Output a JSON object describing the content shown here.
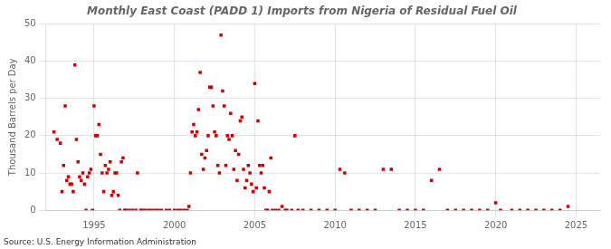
{
  "chart_data": {
    "type": "scatter",
    "title": "Monthly East Coast (PADD 1) Imports from Nigeria of Residual Fuel Oil",
    "ylabel": "Thousand Barrels per Day",
    "annotations": [
      "Source: U.S. Energy Information Administration"
    ],
    "xlim": [
      1992.0,
      2026.5
    ],
    "ylim": [
      0,
      50
    ],
    "xticks": [
      1995,
      2000,
      2005,
      2010,
      2015,
      2020,
      2025
    ],
    "yticks": [
      0,
      10,
      20,
      30,
      40,
      50
    ],
    "color": "#cc0000",
    "marker": "square",
    "grid": true,
    "x": [
      1992.5,
      1992.7,
      1992.9,
      1993.0,
      1993.1,
      1993.2,
      1993.3,
      1993.4,
      1993.5,
      1993.6,
      1993.7,
      1993.8,
      1993.9,
      1994.0,
      1994.1,
      1994.2,
      1994.3,
      1994.4,
      1994.5,
      1994.6,
      1994.7,
      1994.8,
      1994.9,
      1995.0,
      1995.1,
      1995.2,
      1995.3,
      1995.4,
      1995.5,
      1995.6,
      1995.7,
      1995.8,
      1995.9,
      1996.0,
      1996.1,
      1996.2,
      1996.3,
      1996.4,
      1996.5,
      1996.6,
      1996.7,
      1996.8,
      1996.9,
      1997.0,
      1997.2,
      1997.4,
      1997.6,
      1997.7,
      1997.9,
      1998.0,
      1998.2,
      1998.4,
      1998.6,
      1998.8,
      1999.0,
      1999.2,
      1999.5,
      1999.7,
      2000.0,
      2000.2,
      2000.4,
      2000.6,
      2000.8,
      2000.9,
      2001.0,
      2001.1,
      2001.2,
      2001.3,
      2001.4,
      2001.5,
      2001.6,
      2001.7,
      2001.8,
      2001.9,
      2002.0,
      2002.1,
      2002.2,
      2002.3,
      2002.4,
      2002.5,
      2002.6,
      2002.7,
      2002.8,
      2002.9,
      2003.0,
      2003.1,
      2003.2,
      2003.3,
      2003.4,
      2003.5,
      2003.6,
      2003.7,
      2003.8,
      2003.9,
      2004.0,
      2004.1,
      2004.2,
      2004.3,
      2004.4,
      2004.5,
      2004.6,
      2004.7,
      2004.8,
      2004.9,
      2005.0,
      2005.1,
      2005.2,
      2005.3,
      2005.4,
      2005.5,
      2005.6,
      2005.7,
      2005.8,
      2005.9,
      2006.0,
      2006.1,
      2006.3,
      2006.5,
      2006.7,
      2006.9,
      2007.0,
      2007.3,
      2007.5,
      2007.7,
      2008.0,
      2008.5,
      2009.0,
      2009.5,
      2010.0,
      2010.3,
      2010.6,
      2011.0,
      2011.5,
      2012.0,
      2012.5,
      2013.0,
      2013.5,
      2014.0,
      2014.5,
      2015.0,
      2015.5,
      2016.0,
      2016.5,
      2017.0,
      2017.5,
      2018.0,
      2018.5,
      2019.0,
      2019.5,
      2020.0,
      2020.3,
      2021.0,
      2021.5,
      2022.0,
      2022.5,
      2023.0,
      2023.5,
      2024.0,
      2024.5
    ],
    "values": [
      21,
      19,
      18,
      5,
      12,
      28,
      8,
      9,
      7,
      7,
      5,
      39,
      19,
      13,
      9,
      8,
      10,
      7,
      0,
      9,
      10,
      11,
      0,
      28,
      20,
      20,
      23,
      15,
      10,
      5,
      12,
      10,
      11,
      13,
      4,
      5,
      10,
      10,
      4,
      0,
      13,
      14,
      0,
      0,
      0,
      0,
      0,
      10,
      0,
      0,
      0,
      0,
      0,
      0,
      0,
      0,
      0,
      0,
      0,
      0,
      0,
      0,
      0,
      1,
      10,
      21,
      23,
      20,
      21,
      27,
      37,
      15,
      11,
      14,
      16,
      20,
      33,
      33,
      28,
      21,
      20,
      12,
      10,
      47,
      32,
      28,
      12,
      20,
      19,
      26,
      20,
      11,
      16,
      8,
      15,
      24,
      25,
      11,
      6,
      8,
      12,
      10,
      7,
      5,
      34,
      6,
      24,
      12,
      10,
      12,
      6,
      0,
      0,
      5,
      14,
      0,
      0,
      0,
      1,
      0,
      0,
      0,
      20,
      0,
      0,
      0,
      0,
      0,
      0,
      11,
      10,
      0,
      0,
      0,
      0,
      11,
      11,
      0,
      0,
      0,
      0,
      8,
      11,
      0,
      0,
      0,
      0,
      0,
      0,
      2,
      0,
      0,
      0,
      0,
      0,
      0,
      0,
      0,
      1
    ]
  }
}
